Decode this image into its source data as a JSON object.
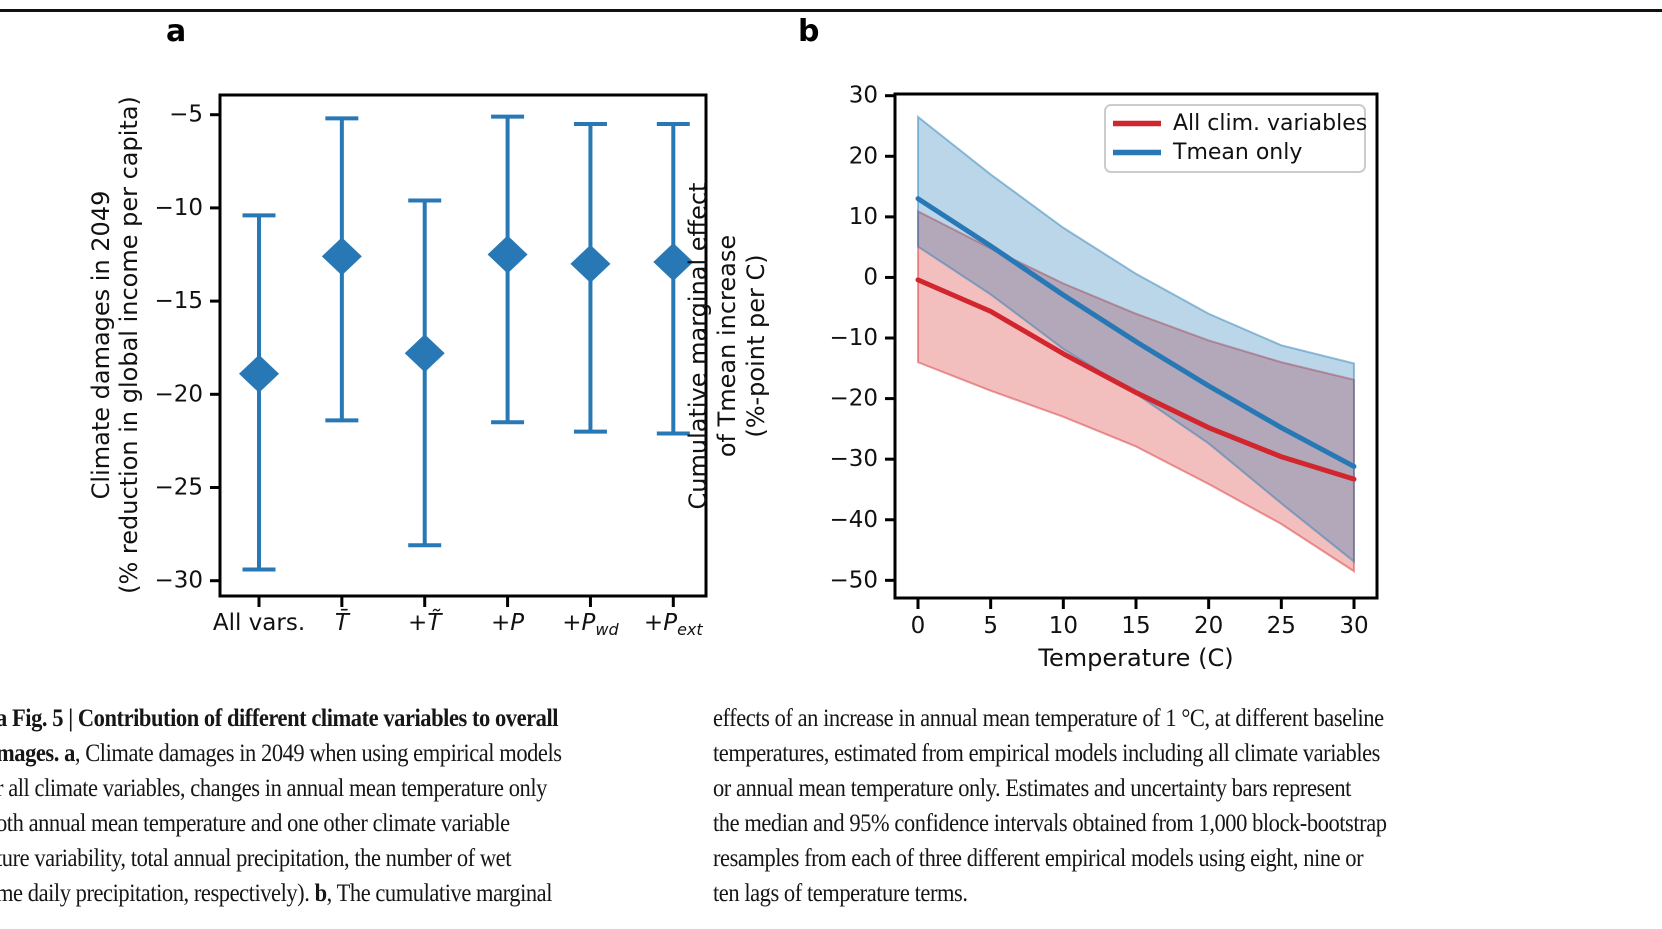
{
  "panels": {
    "a_label": "a",
    "b_label": "b"
  },
  "chart_data": [
    {
      "type": "scatter",
      "panel": "a",
      "ylabel_lines": [
        "Climate damages in 2049",
        "(% reduction in global income per capita)"
      ],
      "ylim": [
        -30.8,
        -4.0
      ],
      "yticks": [
        -5,
        -10,
        -15,
        -20,
        -25,
        -30
      ],
      "grid": false,
      "marker": "diamond",
      "color": "#2878b5",
      "categories": [
        {
          "text": "All vars."
        },
        {
          "base": "T",
          "accent": "̄",
          "italic": true
        },
        {
          "pre": "+",
          "base": "T",
          "accent": "̃",
          "italic": true
        },
        {
          "pre": "+",
          "base": "P",
          "italic": true
        },
        {
          "pre": "+",
          "base": "P",
          "sub": "wd",
          "italic": true
        },
        {
          "pre": "+",
          "base": "P",
          "sub": "ext",
          "italic": true
        }
      ],
      "points": [
        {
          "category": "All vars.",
          "median": -18.9,
          "ci_upper": -10.4,
          "ci_lower": -29.4
        },
        {
          "category": "Tmean",
          "median": -12.6,
          "ci_upper": -5.2,
          "ci_lower": -21.4
        },
        {
          "category": "+Tvar",
          "median": -17.8,
          "ci_upper": -9.6,
          "ci_lower": -28.1
        },
        {
          "category": "+P",
          "median": -12.5,
          "ci_upper": -5.1,
          "ci_lower": -21.5
        },
        {
          "category": "+Pwd",
          "median": -13.0,
          "ci_upper": -5.5,
          "ci_lower": -22.0
        },
        {
          "category": "+Pext",
          "median": -12.9,
          "ci_upper": -5.5,
          "ci_lower": -22.1
        }
      ]
    },
    {
      "type": "line",
      "panel": "b",
      "xlabel": "Temperature (C)",
      "ylabel_lines": [
        "Cumulative marginal effect",
        "of Tmean increase",
        "(%-point per C)"
      ],
      "xlim": [
        -1.6,
        31.6
      ],
      "ylim": [
        -53,
        30.3
      ],
      "xticks": [
        0,
        5,
        10,
        15,
        20,
        25,
        30
      ],
      "yticks": [
        30,
        20,
        10,
        0,
        -10,
        -20,
        -30,
        -40,
        -50
      ],
      "grid": false,
      "x": [
        0,
        5,
        10,
        15,
        20,
        25,
        30
      ],
      "series": [
        {
          "name": "All clim. variables",
          "color": "#d2262e",
          "band_fill": "rgba(214,39,40,0.30)",
          "band_edge": "rgba(214,39,40,0.45)",
          "values": [
            -0.4,
            -5.6,
            -12.6,
            -19.0,
            -24.8,
            -29.6,
            -33.3
          ],
          "band_upper": [
            10.9,
            4.8,
            -1.0,
            -6.0,
            -10.4,
            -14.0,
            -16.9
          ],
          "band_lower": [
            -14.0,
            -18.7,
            -23.0,
            -27.9,
            -34.1,
            -40.7,
            -48.5
          ]
        },
        {
          "name": "Tmean only",
          "color": "#2878b5",
          "band_fill": "rgba(31,119,180,0.30)",
          "band_edge": "rgba(31,119,180,0.45)",
          "values": [
            13.0,
            5.2,
            -2.9,
            -10.6,
            -17.9,
            -24.8,
            -31.2
          ],
          "band_upper": [
            26.5,
            17.0,
            8.2,
            0.6,
            -6.0,
            -11.2,
            -14.2
          ],
          "band_lower": [
            5.1,
            -2.8,
            -11.8,
            -19.2,
            -27.4,
            -37.3,
            -46.9
          ]
        }
      ],
      "legend": {
        "position": "top-right",
        "entries": [
          "All clim. variables",
          "Tmean only"
        ]
      }
    }
  ],
  "caption": {
    "left_lines": [
      {
        "parts": [
          {
            "t": "a Fig. 5 | Contribution of different climate variables to overall",
            "b": true
          }
        ]
      },
      {
        "parts": [
          {
            "t": "mages. a",
            "b": true
          },
          {
            "t": ", Climate damages in 2049 when using empirical models",
            "b": false
          }
        ]
      },
      {
        "parts": [
          {
            "t": "r all climate variables, changes in annual mean temperature only",
            "b": false
          }
        ]
      },
      {
        "parts": [
          {
            "t": "oth annual mean temperature and one other climate variable",
            "b": false
          }
        ]
      },
      {
        "parts": [
          {
            "t": "ture variability, total annual precipitation, the number of wet",
            "b": false
          }
        ]
      },
      {
        "parts": [
          {
            "t": "me daily precipitation, respectively). ",
            "b": false
          },
          {
            "t": "b",
            "b": true
          },
          {
            "t": ", The cumulative marginal",
            "b": false
          }
        ]
      }
    ],
    "right_lines": [
      {
        "parts": [
          {
            "t": "effects of an increase in annual mean temperature of 1 °C, at different baseline",
            "b": false
          }
        ]
      },
      {
        "parts": [
          {
            "t": "temperatures, estimated from empirical models including all climate variables",
            "b": false
          }
        ]
      },
      {
        "parts": [
          {
            "t": "or annual mean temperature only. Estimates and uncertainty bars represent",
            "b": false
          }
        ]
      },
      {
        "parts": [
          {
            "t": "the median and 95% confidence intervals obtained from 1,000 block-bootstrap",
            "b": false
          }
        ]
      },
      {
        "parts": [
          {
            "t": "resamples from each of three different empirical models using eight, nine or",
            "b": false
          }
        ]
      },
      {
        "parts": [
          {
            "t": "ten lags of temperature terms.",
            "b": false
          }
        ]
      }
    ]
  }
}
